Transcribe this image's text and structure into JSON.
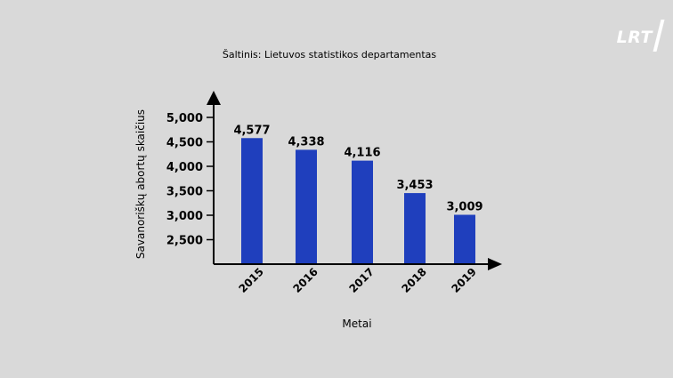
{
  "logo": {
    "text": "LRT"
  },
  "chart_data": {
    "type": "bar",
    "title": "Šaltinis: Lietuvos statistikos departamentas",
    "xlabel": "Metai",
    "ylabel": "Savanoriškų abortų skaičius",
    "categories": [
      "2015",
      "2016",
      "2017",
      "2018",
      "2019"
    ],
    "values": [
      4577,
      4338,
      4116,
      3453,
      3009
    ],
    "value_labels": [
      "4,577",
      "4,338",
      "4,116",
      "3,453",
      "3,009"
    ],
    "yticks": [
      2500,
      3000,
      3500,
      4000,
      4500,
      5000
    ],
    "ytick_labels": [
      "2,500",
      "3,000",
      "3,500",
      "4,000",
      "4,500",
      "5,000"
    ],
    "ylim": [
      2000,
      5000
    ],
    "grid": false,
    "legend": "none",
    "colors": {
      "bar": "#1f3fbd",
      "axis": "#000000",
      "background": "#d9d9d9"
    }
  }
}
